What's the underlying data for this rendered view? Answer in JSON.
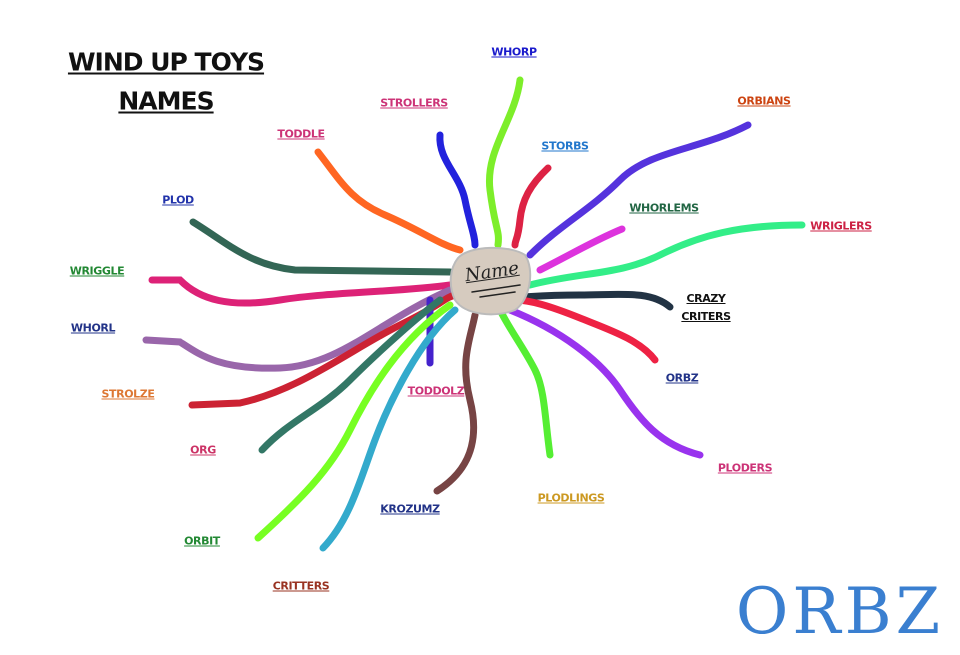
{
  "header": {
    "title": [
      "WIND UP TOYS",
      "NAMES"
    ]
  },
  "center": {
    "label": "Name"
  },
  "nodes": [
    {
      "label": "WHORP"
    },
    {
      "label": "STROLLERS"
    },
    {
      "label": "STORBS"
    },
    {
      "label": "ORBIANS"
    },
    {
      "label": "TODDLE"
    },
    {
      "label": "WHORLEMS"
    },
    {
      "label": "WRIGLERS"
    },
    {
      "label": "PLOD"
    },
    {
      "label": "CRAZY CRITERS"
    },
    {
      "label": "WRIGGLE"
    },
    {
      "label": "WHORL"
    },
    {
      "label": "ORBZ"
    },
    {
      "label": "STROLZE"
    },
    {
      "label": "TODDOLZ"
    },
    {
      "label": "PLODERS"
    },
    {
      "label": "ORG"
    },
    {
      "label": "PLODLINGS"
    },
    {
      "label": "KROZUMZ"
    },
    {
      "label": "ORBIT"
    },
    {
      "label": "CRITTERS"
    }
  ],
  "signature": "ORBZ"
}
